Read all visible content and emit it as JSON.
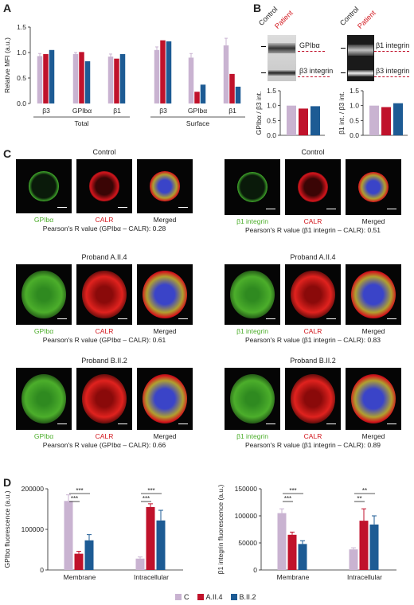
{
  "panels": {
    "a": "A",
    "b": "B",
    "c": "C",
    "d": "D"
  },
  "colors": {
    "control": "#c9b3d1",
    "a_ii_4": "#c0122b",
    "b_ii_2": "#1d5b94",
    "gplba_green": "#4cae2b",
    "calr_red": "#d2151c",
    "patient_red": "#c0122b"
  },
  "chart_a": {
    "type": "bar",
    "ylabel": "Relative MFI (a.u.)",
    "ylim": [
      0,
      1.5
    ],
    "yticks": [
      "0.0",
      "0.5",
      "1.0",
      "1.5"
    ],
    "groups": [
      {
        "label": "Total",
        "categories": [
          {
            "label": "β3",
            "values": [
              0.93,
              0.97,
              1.05
            ],
            "err": [
              0.05,
              0,
              0
            ]
          },
          {
            "label": "GPIbα",
            "values": [
              0.97,
              1.01,
              0.83
            ],
            "err": [
              0.03,
              0,
              0
            ]
          },
          {
            "label": "β1",
            "values": [
              0.92,
              0.88,
              0.97
            ],
            "err": [
              0.05,
              0,
              0
            ]
          }
        ]
      },
      {
        "label": "Surface",
        "categories": [
          {
            "label": "β3",
            "values": [
              1.05,
              1.24,
              1.22
            ],
            "err": [
              0.06,
              0,
              0
            ]
          },
          {
            "label": "GPIbα",
            "values": [
              0.9,
              0.23,
              0.37
            ],
            "err": [
              0.08,
              0,
              0
            ]
          },
          {
            "label": "β1",
            "values": [
              1.14,
              0.58,
              0.33
            ],
            "err": [
              0.14,
              0,
              0
            ]
          }
        ]
      }
    ]
  },
  "blot_b": {
    "left": {
      "col1": "Control",
      "col2": "Patient",
      "band1": "GPIbα",
      "band2": "β3 integrin"
    },
    "right": {
      "col1": "Control",
      "col2": "Patient",
      "band1": "β1 integrin",
      "band2": "β3 integrin"
    }
  },
  "chart_b_left": {
    "type": "bar",
    "ylabel": "GPIbα / β3 int.",
    "ylim": [
      0,
      1.5
    ],
    "yticks": [
      "0.0",
      "0.5",
      "1.0",
      "1.5"
    ],
    "values": [
      1.0,
      0.9,
      0.98
    ]
  },
  "chart_b_right": {
    "type": "bar",
    "ylabel": "β1 int. / β3 int.",
    "ylim": [
      0,
      1.5
    ],
    "yticks": [
      "0.0",
      "0.5",
      "1.0",
      "1.5"
    ],
    "values": [
      1.0,
      0.95,
      1.08
    ]
  },
  "micro": {
    "left": {
      "label1": "GPIbα",
      "label2": "CALR",
      "label3": "Merged",
      "rows": [
        {
          "title": "Control",
          "pearson": "Pearson's R value (GPIbα – CALR): 0.28"
        },
        {
          "title": "Proband A.II.4",
          "pearson": "Pearson's R value (GPIbα – CALR): 0.61"
        },
        {
          "title": "Proband B.II.2",
          "pearson": "Pearson's R value (GPIbα – CALR): 0.66"
        }
      ]
    },
    "right": {
      "label1": "β1 integrin",
      "label2": "CALR",
      "label3": "Merged",
      "rows": [
        {
          "title": "Control",
          "pearson": "Pearson's R value (β1 integrin – CALR): 0.51"
        },
        {
          "title": "Proband A.II.4",
          "pearson": "Pearson's R value (β1 integrin – CALR): 0.83"
        },
        {
          "title": "Proband B.II.2",
          "pearson": "Pearson's R value (β1 integrin – CALR): 0.89"
        }
      ]
    }
  },
  "chart_d_left": {
    "type": "bar",
    "ylabel": "GPIbα fluorescence (a.u.)",
    "ylim": [
      0,
      200000
    ],
    "yticks": [
      "0",
      "100000",
      "200000"
    ],
    "categories": [
      "Membrane",
      "Intracellular"
    ],
    "series": [
      {
        "name": "C",
        "values": [
          170000,
          28000
        ],
        "err": [
          15000,
          4000
        ]
      },
      {
        "name": "A.II.4",
        "values": [
          40000,
          155000
        ],
        "err": [
          6000,
          8000
        ]
      },
      {
        "name": "B.II.2",
        "values": [
          73000,
          122000
        ],
        "err": [
          14000,
          25000
        ]
      }
    ],
    "sig": [
      "***",
      "***",
      "***",
      "***"
    ]
  },
  "chart_d_right": {
    "type": "bar",
    "ylabel": "β1 integrin fluorescence (a.u.)",
    "ylim": [
      0,
      150000
    ],
    "yticks": [
      "0",
      "50000",
      "100000",
      "150000"
    ],
    "categories": [
      "Membrane",
      "Intracellular"
    ],
    "series": [
      {
        "name": "C",
        "values": [
          105000,
          38000
        ],
        "err": [
          8000,
          3000
        ]
      },
      {
        "name": "A.II.4",
        "values": [
          65000,
          91000
        ],
        "err": [
          5000,
          22000
        ]
      },
      {
        "name": "B.II.2",
        "values": [
          48000,
          84000
        ],
        "err": [
          6000,
          16000
        ]
      }
    ],
    "sig": [
      "***",
      "***",
      "**",
      "**"
    ]
  },
  "legend_d": [
    "C",
    "A.II.4",
    "B.II.2"
  ]
}
